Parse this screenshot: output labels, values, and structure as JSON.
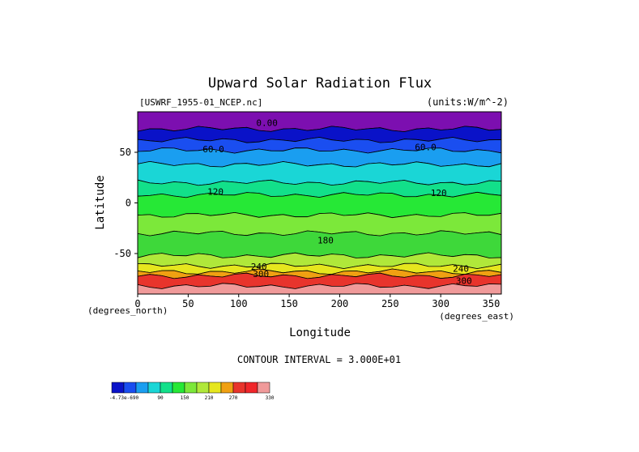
{
  "chart_data": {
    "type": "heatmap",
    "title": "Upward Solar Radiation Flux",
    "source_label": "[USWRF_1955-01_NCEP.nc]",
    "units_label": "(units:W/m^-2)",
    "xlabel": "Longitude",
    "ylabel": "Latitude",
    "x_unit_label": "(degrees_east)",
    "y_unit_label": "(degrees_north)",
    "xlim": [
      0,
      360
    ],
    "ylim": [
      -90,
      90
    ],
    "x_ticks": [
      0,
      50,
      100,
      150,
      200,
      250,
      300,
      350
    ],
    "y_ticks": [
      50,
      0,
      -50
    ],
    "contour_interval_text": "CONTOUR INTERVAL = 3.000E+01",
    "latitude_bands": [
      {
        "lat_from": 90,
        "lat_to": 73,
        "value": 0,
        "color": "#7c0fb0"
      },
      {
        "lat_from": 73,
        "lat_to": 62,
        "value": 15,
        "color": "#0a12c8"
      },
      {
        "lat_from": 62,
        "lat_to": 52,
        "value": 45,
        "color": "#1a4ef0"
      },
      {
        "lat_from": 52,
        "lat_to": 38,
        "value": 75,
        "color": "#1a9ef0"
      },
      {
        "lat_from": 38,
        "lat_to": 20,
        "value": 105,
        "color": "#1ad6d6"
      },
      {
        "lat_from": 20,
        "lat_to": 8,
        "value": 125,
        "color": "#12e08a"
      },
      {
        "lat_from": 8,
        "lat_to": -12,
        "value": 150,
        "color": "#26e836"
      },
      {
        "lat_from": -12,
        "lat_to": -30,
        "value": 170,
        "color": "#7ce83a"
      },
      {
        "lat_from": -30,
        "lat_to": -52,
        "value": 165,
        "color": "#3ed83a"
      },
      {
        "lat_from": -52,
        "lat_to": -62,
        "value": 195,
        "color": "#b0e83a"
      },
      {
        "lat_from": -62,
        "lat_to": -68,
        "value": 230,
        "color": "#e6e61e"
      },
      {
        "lat_from": -68,
        "lat_to": -72,
        "value": 260,
        "color": "#f0a012"
      },
      {
        "lat_from": -72,
        "lat_to": -82,
        "value": 300,
        "color": "#e8342c"
      },
      {
        "lat_from": -82,
        "lat_to": -90,
        "value": 330,
        "color": "#f09a9a"
      }
    ],
    "contour_labels": [
      {
        "text": "0.00",
        "lon": 128,
        "lat": 76
      },
      {
        "text": "60.0",
        "lon": 75,
        "lat": 50
      },
      {
        "text": "60.0",
        "lon": 285,
        "lat": 52
      },
      {
        "text": "120",
        "lon": 77,
        "lat": 8
      },
      {
        "text": "120",
        "lon": 298,
        "lat": 7
      },
      {
        "text": "180",
        "lon": 186,
        "lat": -40
      },
      {
        "text": "240",
        "lon": 120,
        "lat": -66
      },
      {
        "text": "300",
        "lon": 122,
        "lat": -73
      },
      {
        "text": "240",
        "lon": 320,
        "lat": -68
      },
      {
        "text": "300",
        "lon": 323,
        "lat": -80
      }
    ],
    "colorbar": {
      "colors": [
        "#0a12c8",
        "#1a4ef0",
        "#1a9ef0",
        "#1ad6d6",
        "#12e08a",
        "#26e836",
        "#7ce83a",
        "#b0e83a",
        "#e6e61e",
        "#f0a012",
        "#e8342c",
        "#f0262a",
        "#f09a9a"
      ],
      "labels": [
        {
          "text": "-4.73e-690",
          "index": 1
        },
        {
          "text": "90",
          "index": 4
        },
        {
          "text": "150",
          "index": 6
        },
        {
          "text": "210",
          "index": 8
        },
        {
          "text": "270",
          "index": 10
        },
        {
          "text": "330",
          "index": 13
        }
      ]
    }
  }
}
